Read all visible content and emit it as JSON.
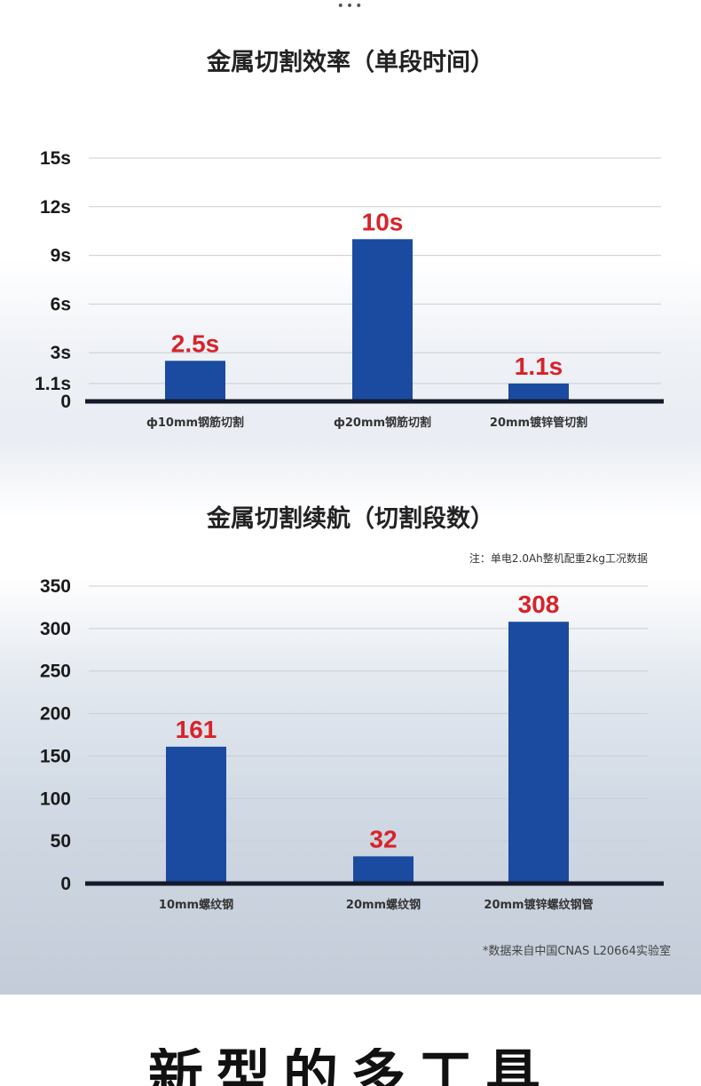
{
  "page": {
    "dots": "•••",
    "bottom_text": "新型的多工具"
  },
  "chart_data": [
    {
      "type": "bar",
      "title": "金属切割效率（单段时间）",
      "categories": [
        "ф10mm钢筋切割",
        "ф20mm钢筋切割",
        "20mm镀锌管切割"
      ],
      "values": [
        2.5,
        10,
        1.1
      ],
      "value_labels": [
        "2.5s",
        "10s",
        "1.1s"
      ],
      "yticks": [
        0,
        1.1,
        3,
        6,
        9,
        12,
        15
      ],
      "ytick_labels": [
        "0",
        "1.1s",
        "3s",
        "6s",
        "9s",
        "12s",
        "15s"
      ],
      "ylim": [
        0,
        15
      ],
      "grid": true,
      "bar_color": "#1a4ba0",
      "label_color": "#d8232a"
    },
    {
      "type": "bar",
      "title": "金属切割续航（切割段数）",
      "note": "注：单电2.0Ah整机配重2kg工况数据",
      "categories": [
        "10mm螺纹钢",
        "20mm螺纹钢",
        "20mm镀锌螺纹钢管"
      ],
      "values": [
        161,
        32,
        308
      ],
      "value_labels": [
        "161",
        "32",
        "308"
      ],
      "yticks": [
        0,
        50,
        100,
        150,
        200,
        250,
        300,
        350
      ],
      "ytick_labels": [
        "0",
        "50",
        "100",
        "150",
        "200",
        "250",
        "300",
        "350"
      ],
      "ylim": [
        0,
        350
      ],
      "grid": true,
      "footnote": "*数据来自中国CNAS L20664实验室",
      "bar_color": "#1a4ba0",
      "label_color": "#d8232a"
    }
  ]
}
